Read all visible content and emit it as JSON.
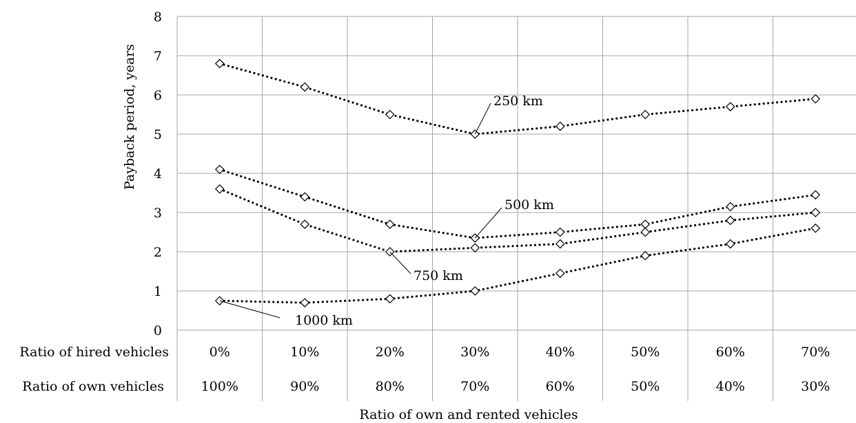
{
  "chart_data": {
    "type": "line",
    "ylabel": "Payback period, years",
    "xlabel": "Ratio of own and rented vehicles",
    "ylim": [
      0,
      8
    ],
    "y_ticks": [
      "0",
      "1",
      "2",
      "3",
      "4",
      "5",
      "6",
      "7",
      "8"
    ],
    "row_labels": {
      "hired": "Ratio of hired vehicles",
      "own": "Ratio of own vehicles"
    },
    "categories_hired": [
      "0%",
      "10%",
      "20%",
      "30%",
      "40%",
      "50%",
      "60%",
      "70%"
    ],
    "categories_own": [
      "100%",
      "90%",
      "80%",
      "70%",
      "60%",
      "50%",
      "40%",
      "30%"
    ],
    "grid": true,
    "marker": "diamond",
    "line_style": "dotted",
    "series": [
      {
        "name": "250 km",
        "values": [
          6.8,
          6.2,
          5.5,
          5.0,
          5.2,
          5.5,
          5.7,
          5.9
        ]
      },
      {
        "name": "500 km",
        "values": [
          4.1,
          3.4,
          2.7,
          2.35,
          2.5,
          2.7,
          3.15,
          3.45
        ]
      },
      {
        "name": "750 km",
        "values": [
          3.6,
          2.7,
          2.0,
          2.1,
          2.2,
          2.5,
          2.8,
          3.0
        ]
      },
      {
        "name": "1000 km",
        "values": [
          0.75,
          0.7,
          0.8,
          1.0,
          1.45,
          1.9,
          2.2,
          2.6
        ]
      }
    ]
  }
}
